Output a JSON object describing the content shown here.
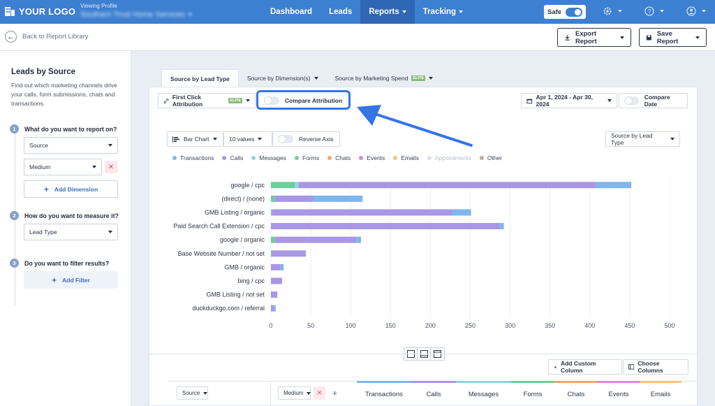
{
  "brand": {
    "logo_text": "YOUR LOGO"
  },
  "profile": {
    "label": "Viewing Profile",
    "value": "Southern Trust Home Services"
  },
  "nav": [
    {
      "label": "Dashboard",
      "active": false,
      "has_menu": false
    },
    {
      "label": "Leads",
      "active": false,
      "has_menu": false
    },
    {
      "label": "Reports",
      "active": true,
      "has_menu": true
    },
    {
      "label": "Tracking",
      "active": false,
      "has_menu": true
    }
  ],
  "topbar_right": {
    "safe_label": "Safe",
    "icons": [
      "gear-icon",
      "help-icon",
      "user-icon"
    ]
  },
  "subheader": {
    "back_label": "Back to Report Library",
    "export_label": "Export Report",
    "save_label": "Save Report"
  },
  "sidebar": {
    "title": "Leads by Source",
    "description": "Find out which marketing channels drive your calls, form submissions, chats and transactions.",
    "steps": [
      {
        "num": "1",
        "label": "What do you want to report on?"
      },
      {
        "num": "2",
        "label": "How do you want to measure it?"
      },
      {
        "num": "3",
        "label": "Do you want to filter results?"
      }
    ],
    "dimension_1": "Source",
    "dimension_2": "Medium",
    "remove_symbol": "✕",
    "add_dimension_label": "Add Dimension",
    "measure": "Lead Type",
    "add_filter_label": "Add Filter"
  },
  "tabs": [
    {
      "label": "Source by Lead Type",
      "active": true,
      "badge": ""
    },
    {
      "label": "Source by Dimension(s)",
      "active": false,
      "badge": ""
    },
    {
      "label": "Source by Marketing Spend",
      "active": false,
      "badge": "ELITE"
    }
  ],
  "toolbar": {
    "attribution": "First Click Attribution",
    "attribution_badge": "ELITE",
    "compare_attribution": "Compare Attribution",
    "date_range": "Apr 1, 2024 - Apr 30, 2024",
    "compare_date": "Compare Date",
    "chart_type": "Bar Chart",
    "values_count": "10 values",
    "reverse_axis": "Reverse Axis",
    "group_by": "Source by Lead Type"
  },
  "colors": {
    "Transactions": "#7fb6ec",
    "Calls": "#a996e6",
    "Messages": "#8fd3dc",
    "Forms": "#6fcf9a",
    "Chats": "#f5a56a",
    "Events": "#d98ae0",
    "Emails": "#f5c47a",
    "Appointments": "#c9cfea",
    "Other": "#b9ad9c"
  },
  "chart_data": {
    "type": "bar",
    "orientation": "horizontal",
    "stacked": true,
    "categories": [
      "google / cpc",
      "(direct) / (none)",
      "GMB Listing / organic",
      "Paid Search Call Extension / cpc",
      "google / organic",
      "Base Website Number / not set",
      "GMB / organic",
      "bing / cpc",
      "GMB Listing / not set",
      "duckduckgo.com / referral"
    ],
    "series": [
      {
        "name": "Transactions",
        "values": [
          45,
          62,
          23,
          5,
          6,
          1,
          4,
          0,
          0,
          2
        ]
      },
      {
        "name": "Calls",
        "values": [
          372,
          48,
          227,
          287,
          102,
          42,
          12,
          14,
          8,
          4
        ]
      },
      {
        "name": "Messages",
        "values": [
          5,
          0,
          0,
          0,
          0,
          0,
          0,
          0,
          0,
          0
        ]
      },
      {
        "name": "Forms",
        "values": [
          30,
          5,
          1,
          0,
          5,
          1,
          0,
          0,
          0,
          0
        ]
      },
      {
        "name": "Chats",
        "values": [
          0,
          0,
          0,
          0,
          0,
          0,
          0,
          0,
          0,
          0
        ]
      },
      {
        "name": "Events",
        "values": [
          0,
          0,
          0,
          0,
          0,
          0,
          0,
          0,
          0,
          0
        ]
      },
      {
        "name": "Emails",
        "values": [
          0,
          0,
          0,
          0,
          0,
          0,
          0,
          0,
          0,
          0
        ]
      },
      {
        "name": "Appointments",
        "values": [
          0,
          0,
          0,
          0,
          0,
          0,
          0,
          0,
          0,
          0
        ]
      },
      {
        "name": "Other",
        "values": [
          0,
          0,
          0,
          0,
          0,
          0,
          0,
          0,
          0,
          0
        ]
      }
    ],
    "stack_order": [
      "Forms",
      "Messages",
      "Calls",
      "Transactions"
    ],
    "xlim": [
      0,
      500
    ],
    "xticks": [
      0,
      50,
      100,
      150,
      200,
      250,
      300,
      350,
      400,
      450,
      500
    ],
    "grid": true,
    "legend": "top-left"
  },
  "table": {
    "source_filter": "Source",
    "medium_filter": "Medium",
    "add_custom_column": "Add Custom Column",
    "choose_columns": "Choose Columns",
    "columns": [
      "Transactions",
      "Calls",
      "Messages",
      "Forms",
      "Chats",
      "Events",
      "Emails"
    ]
  }
}
